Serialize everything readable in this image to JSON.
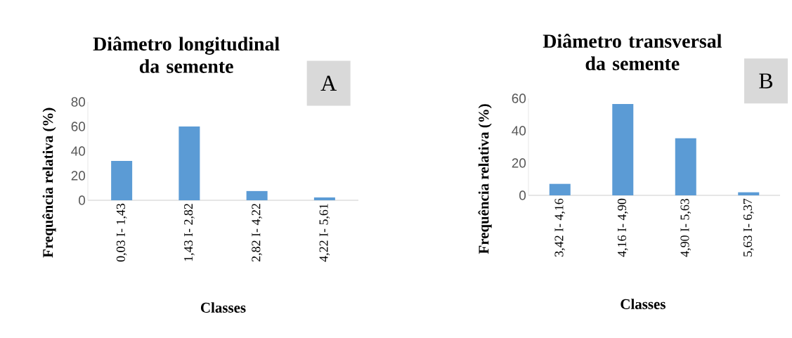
{
  "chart_data": [
    {
      "type": "bar",
      "title": "Diâmetro longitudinal da semente",
      "xlabel": "Classes",
      "ylabel": "Frequência relativa (%)",
      "categories": [
        "0,03 I- 1,43",
        "1,43 I- 2,82",
        "2,82 I- 4,22",
        "4,22 I- 5,61"
      ],
      "values": [
        32,
        60,
        7.5,
        2.3
      ],
      "color": "#5b9bd5",
      "ylim": [
        0,
        80
      ],
      "yticks": [
        0,
        20,
        40,
        60,
        80
      ],
      "annotations": [
        "A"
      ]
    },
    {
      "type": "bar",
      "title": "Diâmetro transversal da semente",
      "xlabel": "Classes",
      "ylabel": "Frequência relativa (%)",
      "categories": [
        "3,42 I- 4,16",
        "4,16 I- 4,90",
        "4,90 I- 5,63",
        "5,63 I- 6,37"
      ],
      "values": [
        7.1,
        56.5,
        35.3,
        1.9
      ],
      "color": "#5b9bd5",
      "ylim": [
        0,
        60
      ],
      "yticks": [
        0,
        20,
        40,
        60
      ],
      "annotations": [
        "B"
      ]
    }
  ]
}
